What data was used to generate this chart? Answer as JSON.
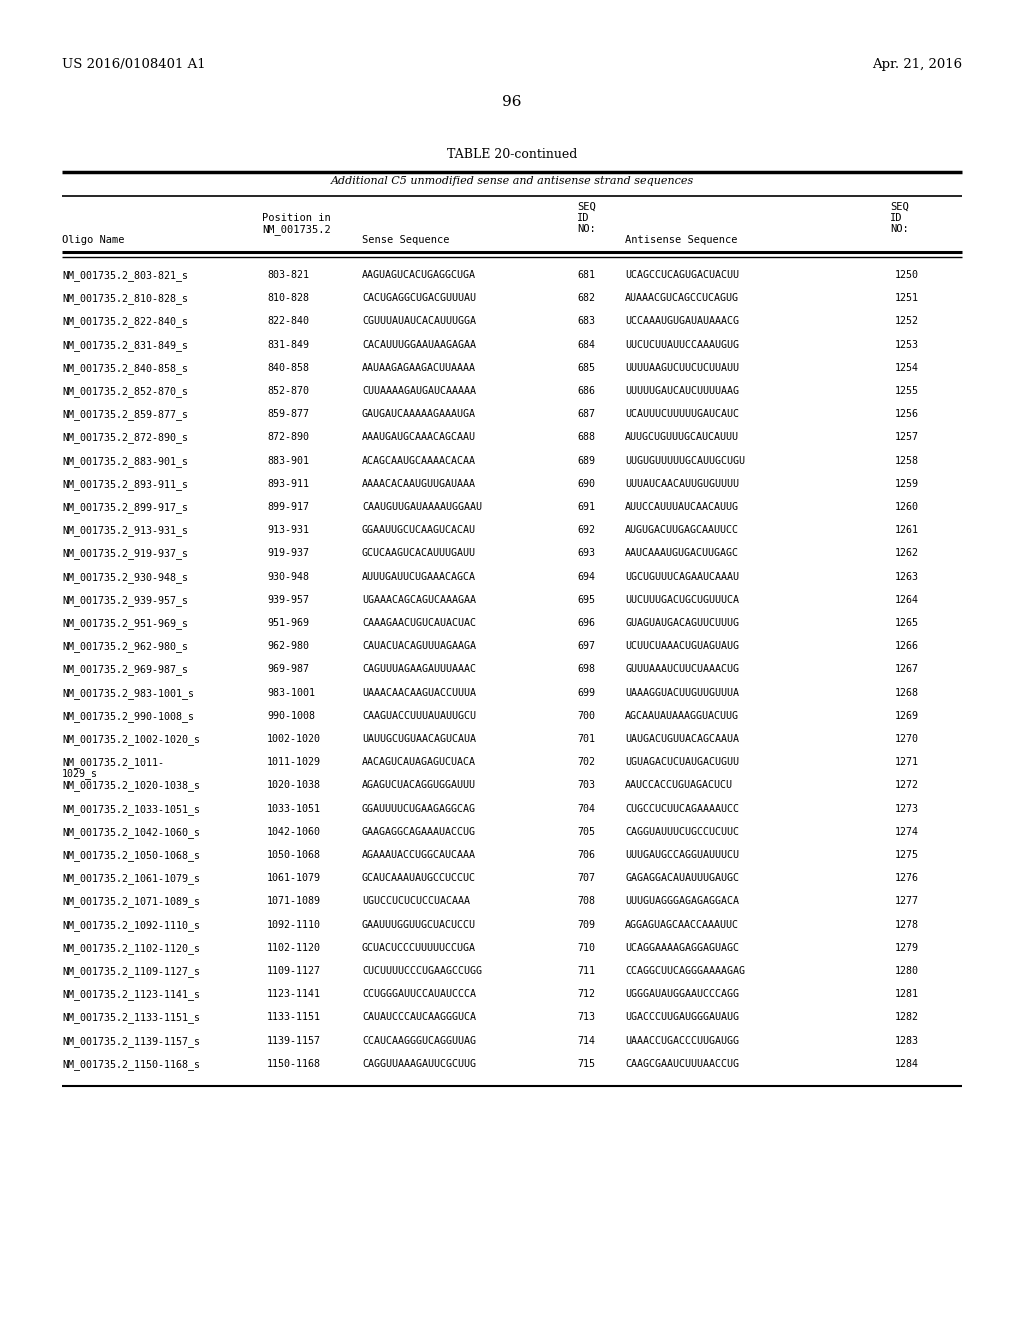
{
  "page_left": "US 2016/0108401 A1",
  "page_right": "Apr. 21, 2016",
  "page_number": "96",
  "table_title": "TABLE 20-continued",
  "table_subtitle": "Additional C5 unmodified sense and antisense strand sequences",
  "rows": [
    [
      "NM_001735.2_803-821_s",
      "803-821",
      "AAGUAGUCACUGAGGCUGA",
      "681",
      "UCAGCCUCAGUGACUACUU",
      "1250"
    ],
    [
      "NM_001735.2_810-828_s",
      "810-828",
      "CACUGAGGCUGACGUUUAU",
      "682",
      "AUAAACGUCAGCCUCAGUG",
      "1251"
    ],
    [
      "NM_001735.2_822-840_s",
      "822-840",
      "CGUUUAUAUCACAUUUGGA",
      "683",
      "UCCAAAUGUGAUAUAAACG",
      "1252"
    ],
    [
      "NM_001735.2_831-849_s",
      "831-849",
      "CACAUUUGGAAUAAGAGAA",
      "684",
      "UUCUCUUAUUCCAAAUGUG",
      "1253"
    ],
    [
      "NM_001735.2_840-858_s",
      "840-858",
      "AAUAAGAGAAGACUUAAAA",
      "685",
      "UUUUAAGUCUUCUCUUAUU",
      "1254"
    ],
    [
      "NM_001735.2_852-870_s",
      "852-870",
      "CUUAAAAGAUGAUCAAAAA",
      "686",
      "UUUUUGAUCAUCUUUUAAG",
      "1255"
    ],
    [
      "NM_001735.2_859-877_s",
      "859-877",
      "GAUGAUCAAAAAGAAAUGA",
      "687",
      "UCAUUUCUUUUUGAUCAUC",
      "1256"
    ],
    [
      "NM_001735.2_872-890_s",
      "872-890",
      "AAAUGAUGCAAACAGCAAU",
      "688",
      "AUUGCUGUUUGCAUCAUUU",
      "1257"
    ],
    [
      "NM_001735.2_883-901_s",
      "883-901",
      "ACAGCAAUGCAAAACACAA",
      "689",
      "UUGUGUUUUUGCAUUGCUGU",
      "1258"
    ],
    [
      "NM_001735.2_893-911_s",
      "893-911",
      "AAAACACAAUGUUGAUAAA",
      "690",
      "UUUAUCAACAUUGUGUUUU",
      "1259"
    ],
    [
      "NM_001735.2_899-917_s",
      "899-917",
      "CAAUGUUGAUAAAAUGGAAU",
      "691",
      "AUUCCAUUUAUCAACAUUG",
      "1260"
    ],
    [
      "NM_001735.2_913-931_s",
      "913-931",
      "GGAAUUGCUCAAGUCACAU",
      "692",
      "AUGUGACUUGAGCAAUUCC",
      "1261"
    ],
    [
      "NM_001735.2_919-937_s",
      "919-937",
      "GCUCAAGUCACAUUUGAUU",
      "693",
      "AAUCAAAUGUGACUUGAGC",
      "1262"
    ],
    [
      "NM_001735.2_930-948_s",
      "930-948",
      "AUUUGAUUCUGAAACAGCA",
      "694",
      "UGCUGUUUCAGAAUCAAAU",
      "1263"
    ],
    [
      "NM_001735.2_939-957_s",
      "939-957",
      "UGAAACAGCAGUCAAAGAA",
      "695",
      "UUCUUUGACUGCUGUUUCA",
      "1264"
    ],
    [
      "NM_001735.2_951-969_s",
      "951-969",
      "CAAAGAACUGUCAUACUAC",
      "696",
      "GUAGUAUGACAGUUCUUUG",
      "1265"
    ],
    [
      "NM_001735.2_962-980_s",
      "962-980",
      "CAUACUACAGUUUAGAAGA",
      "697",
      "UCUUCUAAACUGUAGUAUG",
      "1266"
    ],
    [
      "NM_001735.2_969-987_s",
      "969-987",
      "CAGUUUAGAAGAUUUAAAC",
      "698",
      "GUUUAAAUCUUCUAAACUG",
      "1267"
    ],
    [
      "NM_001735.2_983-1001_s",
      "983-1001",
      "UAAACAACAAGUACCUUUA",
      "699",
      "UAAAGGUACUUGUUGUUUA",
      "1268"
    ],
    [
      "NM_001735.2_990-1008_s",
      "990-1008",
      "CAAGUACCUUUAUAUUGCU",
      "700",
      "AGCAAUAUAAAGGUACUUG",
      "1269"
    ],
    [
      "NM_001735.2_1002-1020_s",
      "1002-1020",
      "UAUUGCUGUAACAGUCAUA",
      "701",
      "UAUGACUGUUACAGCAAUA",
      "1270"
    ],
    [
      "NM_001735.2_1011-\n1029_s",
      "1011-1029",
      "AACAGUCAUAGAGUCUACA",
      "702",
      "UGUAGACUCUAUGACUGUU",
      "1271"
    ],
    [
      "NM_001735.2_1020-1038_s",
      "1020-1038",
      "AGAGUCUACAGGUGGAUUU",
      "703",
      "AAUCCACCUGUAGACUCU",
      "1272"
    ],
    [
      "NM_001735.2_1033-1051_s",
      "1033-1051",
      "GGAUUUUCUGAAGAGGCAG",
      "704",
      "CUGCCUCUUCAGAAAAUCC",
      "1273"
    ],
    [
      "NM_001735.2_1042-1060_s",
      "1042-1060",
      "GAAGAGGCAGAAAUACCUG",
      "705",
      "CAGGUAUUUCUGCCUCUUC",
      "1274"
    ],
    [
      "NM_001735.2_1050-1068_s",
      "1050-1068",
      "AGAAAUACCUGGCAUCAAA",
      "706",
      "UUUGAUGCCAGGUAUUUCU",
      "1275"
    ],
    [
      "NM_001735.2_1061-1079_s",
      "1061-1079",
      "GCAUCAAAUAUGCCUCCUC",
      "707",
      "GAGAGGACAUAUUUGAUGC",
      "1276"
    ],
    [
      "NM_001735.2_1071-1089_s",
      "1071-1089",
      "UGUCCUCUCUCCUACAAA",
      "708",
      "UUUGUAGGGAGAGAGGACA",
      "1277"
    ],
    [
      "NM_001735.2_1092-1110_s",
      "1092-1110",
      "GAAUUUGGUUGCUACUCCU",
      "709",
      "AGGAGUAGCAACCAAAUUC",
      "1278"
    ],
    [
      "NM_001735.2_1102-1120_s",
      "1102-1120",
      "GCUACUCCCUUUUUCCUGA",
      "710",
      "UCAGGAAAAGAGGAGUAGC",
      "1279"
    ],
    [
      "NM_001735.2_1109-1127_s",
      "1109-1127",
      "CUCUUUUCCCUGAAGCCUGG",
      "711",
      "CCAGGCUUCAGGGAAAAGAG",
      "1280"
    ],
    [
      "NM_001735.2_1123-1141_s",
      "1123-1141",
      "CCUGGGAUUCCAUAUCCCA",
      "712",
      "UGGGAUAUGGAAUCCCAGG",
      "1281"
    ],
    [
      "NM_001735.2_1133-1151_s",
      "1133-1151",
      "CAUAUCCCAUCAAGGGUCA",
      "713",
      "UGACCCUUGAUGGGAUAUG",
      "1282"
    ],
    [
      "NM_001735.2_1139-1157_s",
      "1139-1157",
      "CCAUCAAGGGUCAGGUUAG",
      "714",
      "UAAACCUGACCCUUGAUGG",
      "1283"
    ],
    [
      "NM_001735.2_1150-1168_s",
      "1150-1168",
      "CAGGUUAAAGAUUCGCUUG",
      "715",
      "CAAGCGAAUCUUUAACCUG",
      "1284"
    ]
  ],
  "background_color": "#ffffff",
  "text_color": "#000000"
}
